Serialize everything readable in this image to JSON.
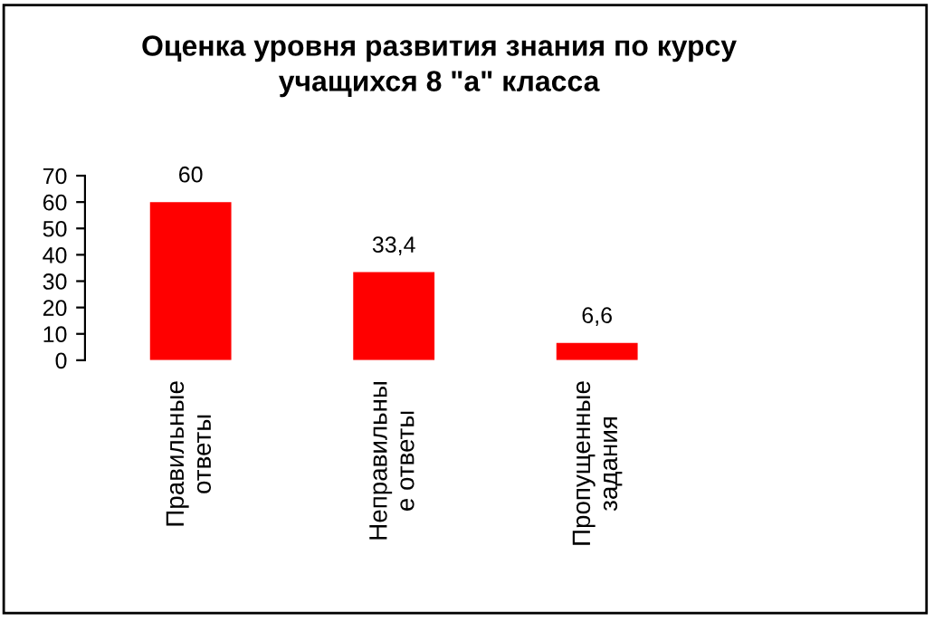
{
  "chart_data": {
    "type": "bar",
    "title": "Оценка уровня развития знания по курсу\nучащихся 8 \"а\" класса",
    "categories": [
      "Правильные\nответы",
      "Неправильны\nе ответы",
      "Пропущенные\nзадания"
    ],
    "values": [
      60,
      33.4,
      6.6
    ],
    "value_labels": [
      "60",
      "33,4",
      "6,6"
    ],
    "color": "#ff0000",
    "ylim": [
      0,
      70
    ],
    "yticks": [
      0,
      10,
      20,
      30,
      40,
      50,
      60,
      70
    ],
    "grid": false,
    "legend": false
  }
}
